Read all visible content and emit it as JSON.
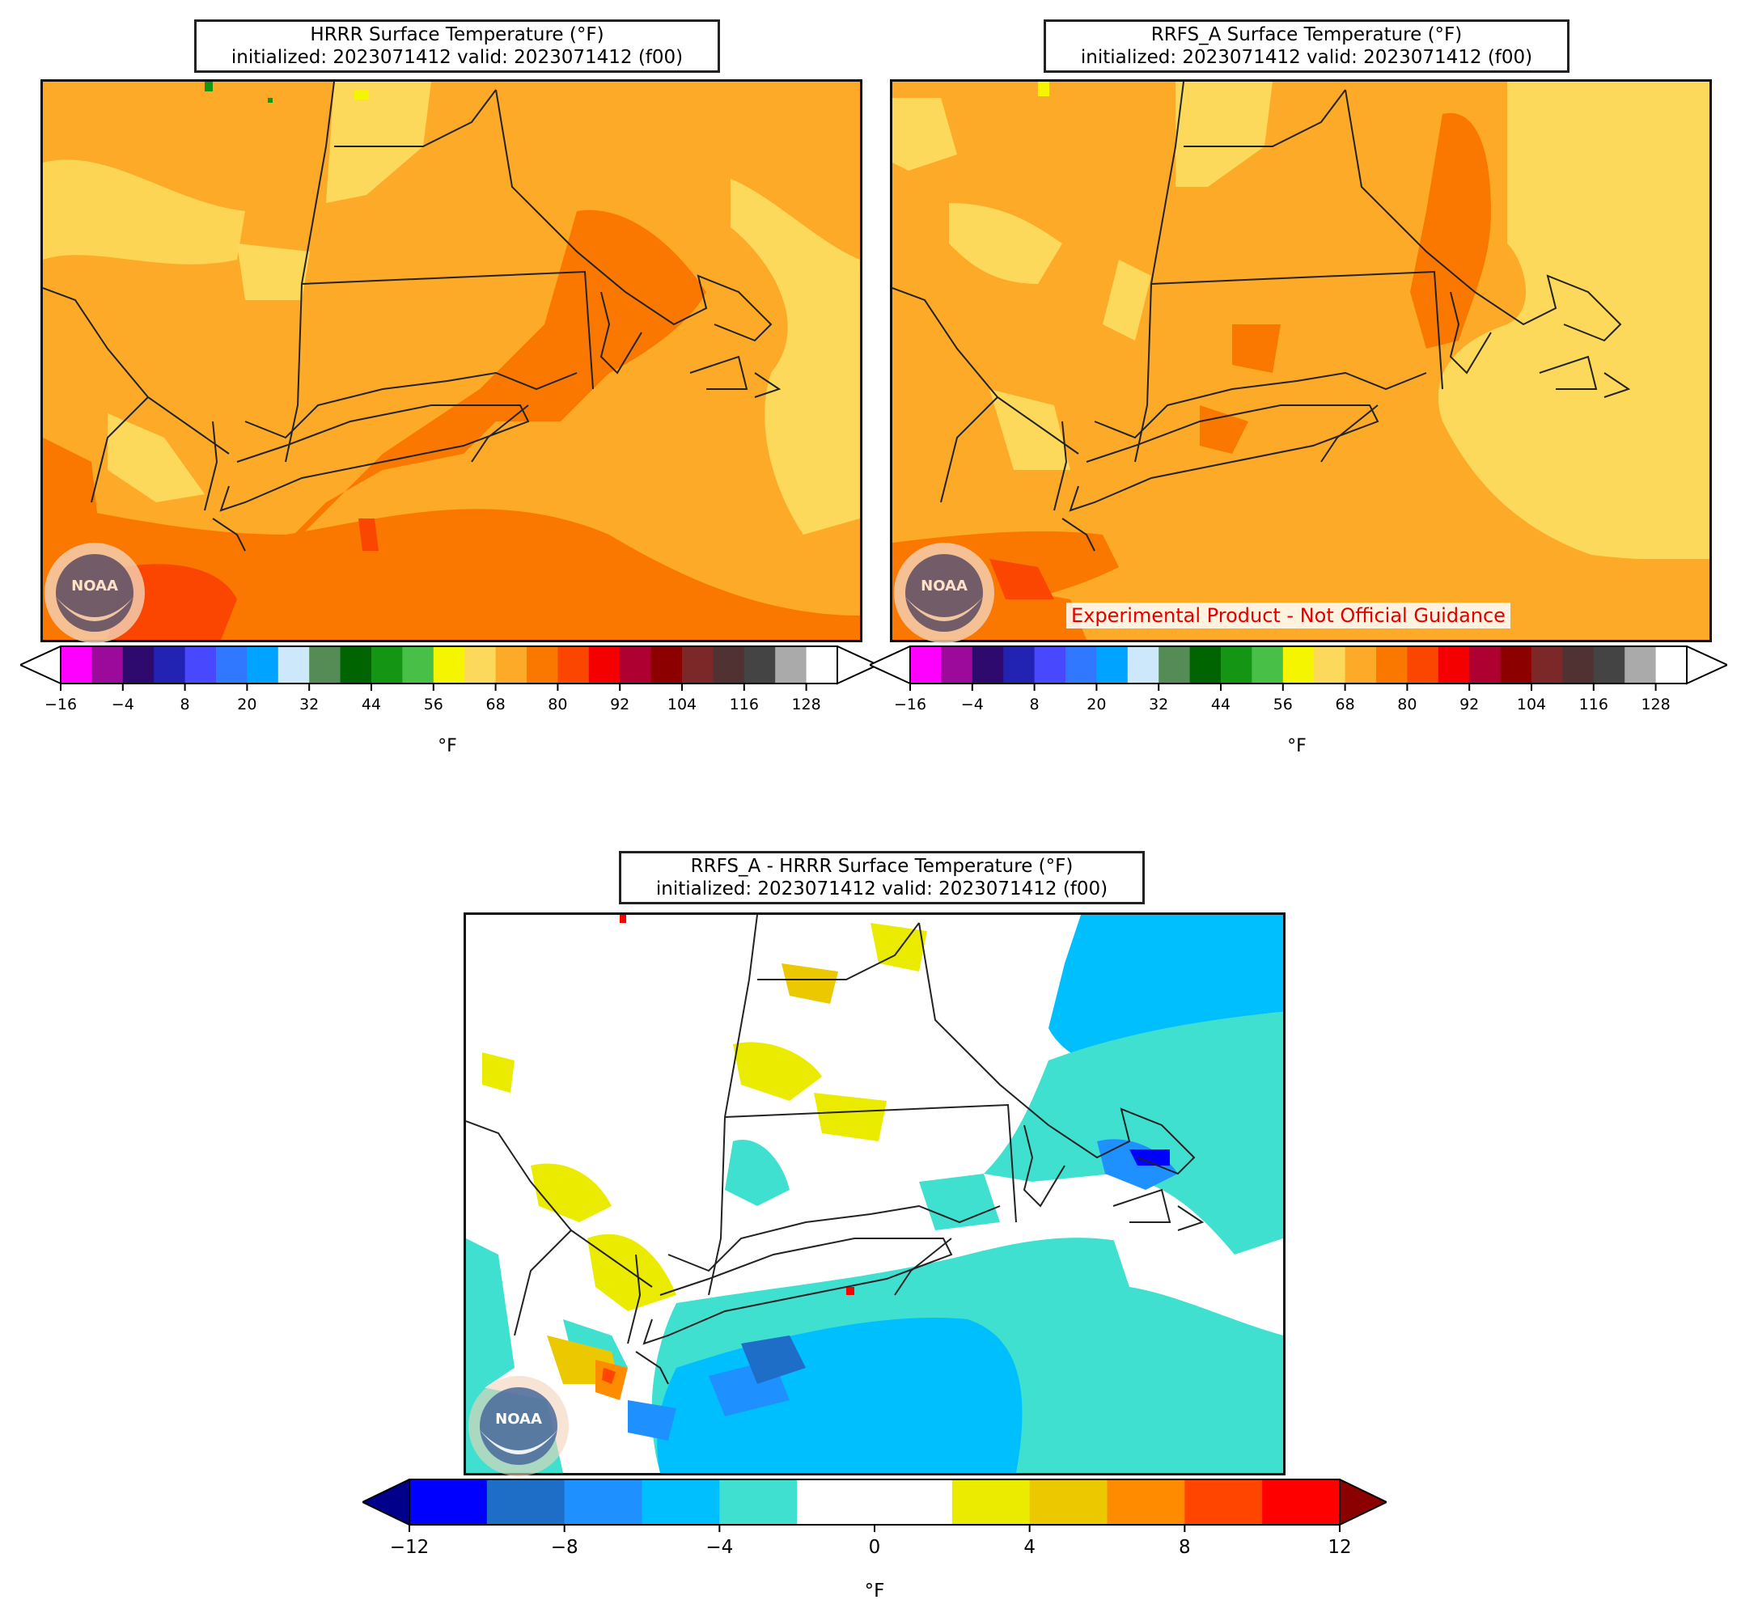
{
  "panels": [
    {
      "title_line1": "HRRR Surface Temperature (°F)",
      "title_line2": "initialized: 2023071412 valid: 2023071412 (f00)"
    },
    {
      "title_line1": "RRFS_A Surface Temperature (°F)",
      "title_line2": "initialized: 2023071412 valid: 2023071412 (f00)",
      "disclaimer": "Experimental Product - Not Official Guidance"
    },
    {
      "title_line1": "RRFS_A - HRRR Surface Temperature (°F)",
      "title_line2": "initialized: 2023071412 valid: 2023071412 (f00)"
    }
  ],
  "temp_colorbar": {
    "unit": "°F",
    "ticks": [
      "−16",
      "−4",
      "8",
      "20",
      "32",
      "44",
      "56",
      "68",
      "80",
      "92",
      "104",
      "116",
      "128"
    ],
    "colors": [
      "#ff00ff",
      "#9b0a9b",
      "#2e0a6e",
      "#2323b3",
      "#4848ff",
      "#2f78ff",
      "#00a3ff",
      "#cce8fa",
      "#558b55",
      "#006400",
      "#149614",
      "#48c048",
      "#f5f500",
      "#fcd95a",
      "#fcaa28",
      "#fa7800",
      "#fa4600",
      "#f50000",
      "#af0032",
      "#8c0000",
      "#7c2828",
      "#503232",
      "#444444",
      "#aaaaaa",
      "#ffffff"
    ],
    "extend_colors": [
      "#ffffff",
      "#ffffff"
    ]
  },
  "diff_colorbar": {
    "unit": "°F",
    "ticks": [
      "−12",
      "−8",
      "−4",
      "0",
      "4",
      "8",
      "12"
    ],
    "colors": [
      "#0000ff",
      "#1e6ec8",
      "#1e90ff",
      "#00bfff",
      "#40e0d0",
      "#ffffff",
      "#ffffff",
      "#ebeb00",
      "#ebc800",
      "#ff8c00",
      "#ff4500",
      "#ff0000"
    ],
    "extend_colors": [
      "#00008b",
      "#8b0000"
    ]
  },
  "logo_text": "NOAA"
}
